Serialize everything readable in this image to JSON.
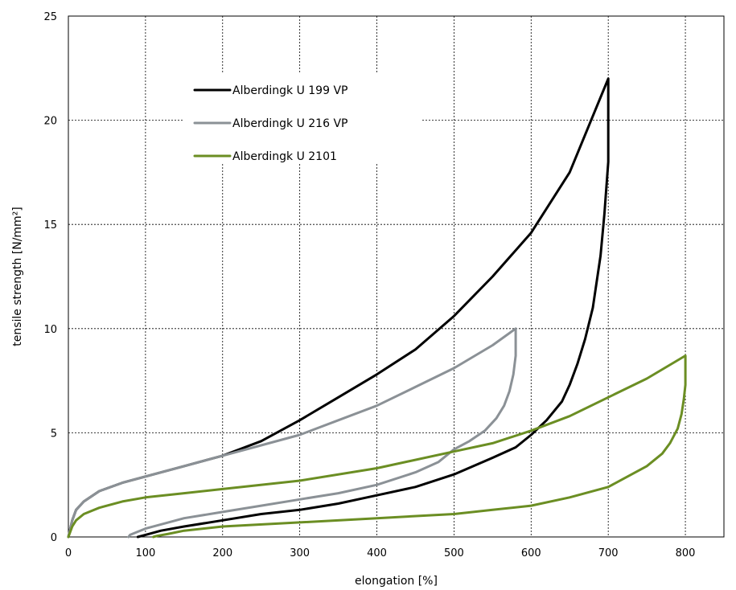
{
  "chart_data": {
    "type": "line",
    "title": "",
    "xlabel": "elongation  [%]",
    "ylabel": "tensile strength [N/mm²]",
    "xlim": [
      0,
      850
    ],
    "ylim": [
      0,
      25
    ],
    "xticks": [
      0,
      100,
      200,
      300,
      400,
      500,
      600,
      700,
      800
    ],
    "yticks": [
      0,
      5,
      10,
      15,
      20,
      25
    ],
    "grid": true,
    "legend_position": "top-left",
    "series": [
      {
        "name": "Alberdingk U 199 VP",
        "color": "#000000",
        "x": [
          0,
          5,
          10,
          20,
          40,
          70,
          100,
          150,
          200,
          250,
          300,
          350,
          400,
          450,
          500,
          550,
          600,
          650,
          700,
          700,
          695,
          690,
          680,
          670,
          660,
          650,
          640,
          620,
          600,
          580,
          550,
          500,
          450,
          400,
          350,
          300,
          250,
          200,
          150,
          120,
          100,
          90
        ],
        "y": [
          0,
          0.8,
          1.3,
          1.7,
          2.2,
          2.6,
          2.9,
          3.4,
          3.9,
          4.6,
          5.6,
          6.7,
          7.8,
          9.0,
          10.6,
          12.5,
          14.6,
          17.5,
          22.0,
          18.0,
          15.5,
          13.5,
          11.0,
          9.5,
          8.3,
          7.3,
          6.5,
          5.6,
          4.9,
          4.3,
          3.8,
          3.0,
          2.4,
          2.0,
          1.6,
          1.3,
          1.1,
          0.8,
          0.5,
          0.3,
          0.1,
          0
        ]
      },
      {
        "name": "Alberdingk U 216 VP",
        "color": "#8b9196",
        "x": [
          0,
          5,
          10,
          20,
          40,
          70,
          100,
          150,
          200,
          250,
          300,
          350,
          400,
          450,
          500,
          550,
          580,
          580,
          577,
          572,
          565,
          555,
          540,
          520,
          500,
          480,
          450,
          400,
          350,
          300,
          250,
          200,
          150,
          120,
          100,
          90,
          80,
          78
        ],
        "y": [
          0,
          0.8,
          1.3,
          1.7,
          2.2,
          2.6,
          2.9,
          3.4,
          3.9,
          4.4,
          4.9,
          5.6,
          6.3,
          7.2,
          8.1,
          9.2,
          10.0,
          8.7,
          7.8,
          7.0,
          6.3,
          5.7,
          5.1,
          4.6,
          4.2,
          3.6,
          3.1,
          2.5,
          2.1,
          1.8,
          1.5,
          1.2,
          0.9,
          0.6,
          0.4,
          0.25,
          0.1,
          0
        ]
      },
      {
        "name": "Alberdingk U 2101",
        "color": "#6b8e23",
        "x": [
          0,
          5,
          10,
          20,
          40,
          70,
          100,
          150,
          200,
          300,
          400,
          500,
          550,
          600,
          650,
          700,
          750,
          800,
          800,
          798,
          795,
          790,
          780,
          770,
          750,
          720,
          700,
          650,
          600,
          550,
          500,
          400,
          300,
          200,
          150,
          130,
          115,
          110
        ],
        "y": [
          0,
          0.5,
          0.8,
          1.1,
          1.4,
          1.7,
          1.9,
          2.1,
          2.3,
          2.7,
          3.3,
          4.1,
          4.5,
          5.1,
          5.8,
          6.7,
          7.6,
          8.7,
          7.3,
          6.6,
          5.9,
          5.2,
          4.5,
          4.0,
          3.4,
          2.8,
          2.4,
          1.9,
          1.5,
          1.3,
          1.1,
          0.9,
          0.7,
          0.5,
          0.3,
          0.15,
          0.05,
          0
        ]
      }
    ]
  }
}
